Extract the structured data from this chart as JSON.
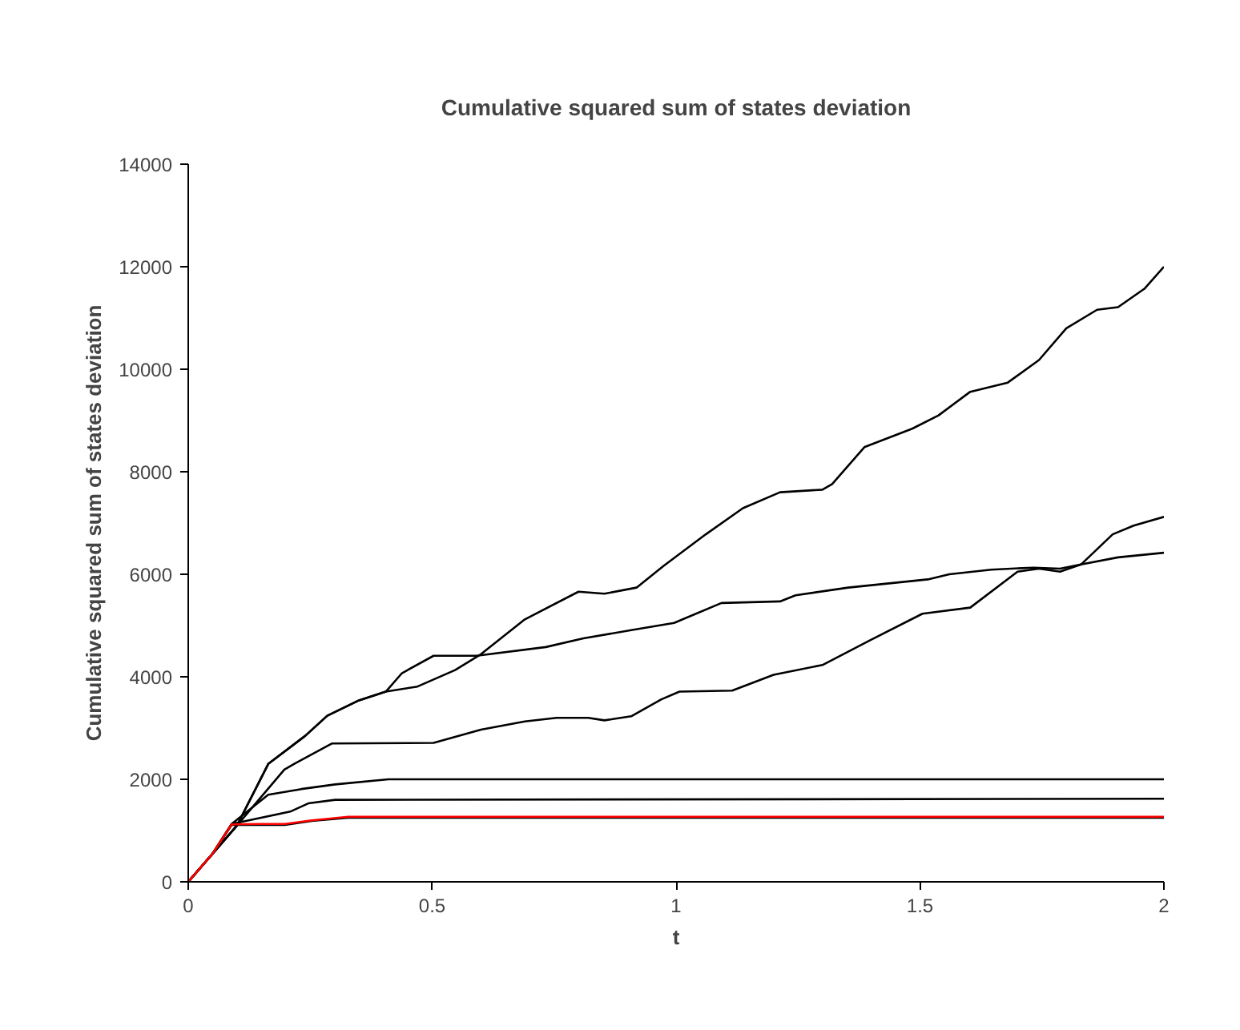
{
  "chart_data": {
    "type": "line",
    "title": "Cumulative squared sum of states deviation",
    "xlabel": "t",
    "ylabel": "Cumulative squared sum of states deviation",
    "xlim": [
      0,
      2
    ],
    "xticks": [
      0,
      0.5,
      1,
      1.5,
      2
    ],
    "ylim": [
      0,
      14000
    ],
    "yticks": [
      0,
      2000,
      4000,
      6000,
      8000,
      10000,
      12000,
      14000
    ],
    "grid": false,
    "marker": "none",
    "line_style": "solid",
    "series": [
      {
        "color": "#000000",
        "x": [
          0,
          0.05,
          0.1,
          0.164,
          0.24,
          0.285,
          0.35,
          0.405,
          0.47,
          0.547,
          0.6,
          0.69,
          0.8,
          0.853,
          0.919,
          0.974,
          1.061,
          1.137,
          1.213,
          1.3,
          1.32,
          1.386,
          1.484,
          1.538,
          1.603,
          1.68,
          1.744,
          1.8,
          1.863,
          1.906,
          1.96,
          2
        ],
        "values": [
          0,
          550,
          1100,
          2300,
          2850,
          3240,
          3540,
          3710,
          3810,
          4130,
          4440,
          5120,
          5660,
          5620,
          5740,
          6160,
          6780,
          7290,
          7600,
          7650,
          7760,
          8480,
          8840,
          9100,
          9560,
          9740,
          10180,
          10800,
          11160,
          11210,
          11570,
          12000
        ]
      },
      {
        "color": "#000000",
        "x": [
          0,
          0.05,
          0.1,
          0.164,
          0.24,
          0.285,
          0.35,
          0.405,
          0.438,
          0.503,
          0.591,
          0.733,
          0.81,
          0.908,
          0.996,
          1.093,
          1.213,
          1.245,
          1.353,
          1.516,
          1.56,
          1.646,
          1.733,
          1.787,
          1.83,
          1.906,
          2
        ],
        "values": [
          0,
          550,
          1100,
          2300,
          2850,
          3240,
          3540,
          3710,
          4070,
          4410,
          4410,
          4580,
          4750,
          4910,
          5050,
          5440,
          5470,
          5590,
          5740,
          5900,
          6000,
          6090,
          6130,
          6110,
          6190,
          6330,
          6420
        ]
      },
      {
        "color": "#000000",
        "x": [
          0,
          0.05,
          0.1,
          0.197,
          0.219,
          0.295,
          0.503,
          0.6,
          0.69,
          0.755,
          0.82,
          0.853,
          0.908,
          0.97,
          1.007,
          1.115,
          1.2,
          1.3,
          1.397,
          1.505,
          1.603,
          1.7,
          1.744,
          1.787,
          1.83,
          1.895,
          1.938,
          2
        ],
        "values": [
          0,
          550,
          1100,
          2190,
          2310,
          2700,
          2710,
          2970,
          3130,
          3200,
          3200,
          3150,
          3230,
          3560,
          3710,
          3730,
          4040,
          4230,
          4710,
          5230,
          5350,
          6050,
          6110,
          6050,
          6190,
          6780,
          6950,
          7120
        ]
      },
      {
        "color": "#000000",
        "x": [
          0,
          0.05,
          0.089,
          0.164,
          0.232,
          0.301,
          0.41,
          2
        ],
        "values": [
          0,
          550,
          1130,
          1700,
          1810,
          1900,
          2000,
          2000
        ]
      },
      {
        "color": "#000000",
        "x": [
          0,
          0.05,
          0.089,
          0.209,
          0.246,
          0.301,
          2
        ],
        "values": [
          0,
          550,
          1130,
          1370,
          1530,
          1600,
          1620
        ]
      },
      {
        "color": "#000000",
        "x": [
          0,
          0.05,
          0.089,
          0.198,
          0.253,
          0.328,
          2
        ],
        "values": [
          0,
          550,
          1110,
          1110,
          1190,
          1250,
          1250
        ]
      },
      {
        "color": "#ff0000",
        "x": [
          0,
          0.05,
          0.089,
          0.144,
          0.198,
          0.253,
          0.328,
          2
        ],
        "values": [
          0,
          550,
          1120,
          1130,
          1130,
          1200,
          1270,
          1270
        ]
      }
    ]
  }
}
